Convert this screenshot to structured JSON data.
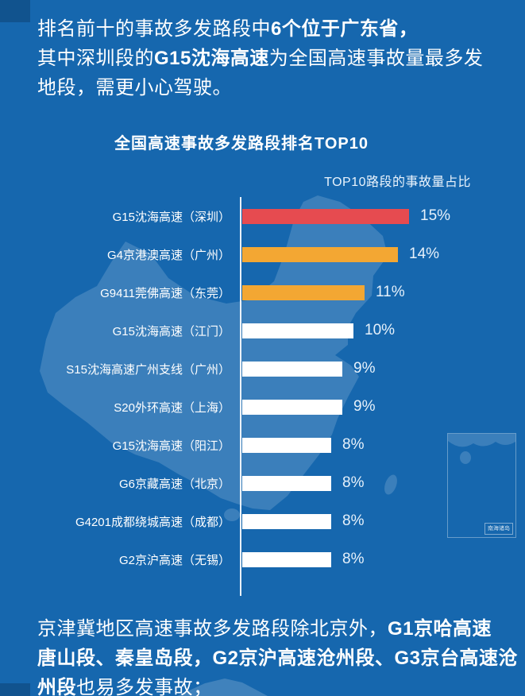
{
  "intro": {
    "line1_normal": "排名前十的事故多发路段中",
    "line1_bold": "6个位于广东省，",
    "line2_pre": "其中深圳段的",
    "line2_bold": "G15沈海高速",
    "line2_post": "为全国高速事故量最多发",
    "line3": "地段，需更小心驾驶。"
  },
  "chart": {
    "title": "全国高速事故多发路段排名TOP10",
    "subtitle": "TOP10路段的事故量占比"
  },
  "chart_data": {
    "type": "bar",
    "orientation": "horizontal",
    "title": "全国高速事故多发路段排名TOP10",
    "subtitle": "TOP10路段的事故量占比",
    "categories": [
      "G15沈海高速（深圳）",
      "G4京港澳高速（广州）",
      "G9411莞佛高速（东莞）",
      "G15沈海高速（江门）",
      "S15沈海高速广州支线（广州）",
      "S20外环高速（上海）",
      "G15沈海高速（阳江）",
      "G6京藏高速（北京）",
      "G4201成都绕城高速（成都）",
      "G2京沪高速（无锡）"
    ],
    "values": [
      15,
      14,
      11,
      10,
      9,
      9,
      8,
      8,
      8,
      8
    ],
    "value_labels": [
      "15%",
      "14%",
      "11%",
      "10%",
      "9%",
      "9%",
      "8%",
      "8%",
      "8%",
      "8%"
    ],
    "bar_colors": [
      "#e64b50",
      "#f3a733",
      "#f3a733",
      "#ffffff",
      "#ffffff",
      "#ffffff",
      "#ffffff",
      "#ffffff",
      "#ffffff",
      "#ffffff"
    ],
    "unit": "percent",
    "xlim": [
      0,
      15
    ],
    "grid": false,
    "legend": false
  },
  "map": {
    "inset_label": "南海诸岛"
  },
  "outro": {
    "line1_normal": "京津冀地区高速事故多发路段除北京外，",
    "line1_bold": "G1京哈高速",
    "line2_bold": "唐山段、秦皇岛段，G2京沪高速沧州段、G3京台高速沧",
    "line3_bold": "州段",
    "line3_normal": "也易多发事故；"
  },
  "colors": {
    "background": "#1667ae",
    "bar_red": "#e64b50",
    "bar_orange": "#f3a733",
    "bar_white": "#ffffff",
    "map_tint": "rgba(255,255,255,0.16)",
    "text": "#ffffff"
  }
}
